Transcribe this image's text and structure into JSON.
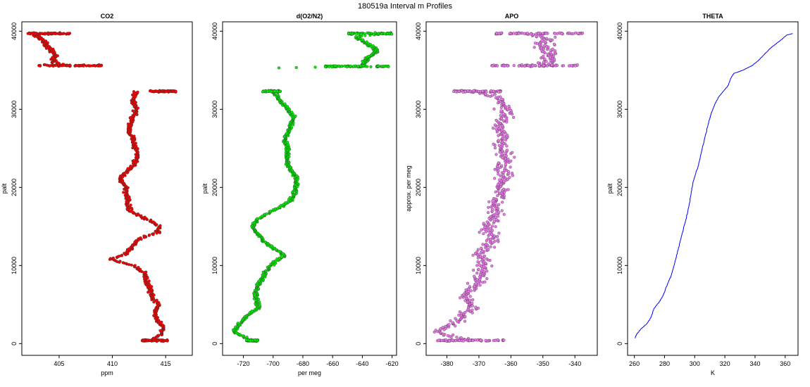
{
  "title": "180519a   Interval m Profiles",
  "chart_data": [
    {
      "type": "scatter",
      "title": "CO2",
      "xlabel": "ppm",
      "ylabel": "palt",
      "xlim": [
        401.5,
        417.5
      ],
      "ylim": [
        -1500,
        41200
      ],
      "xticks": [
        405,
        410,
        415
      ],
      "yticks": [
        0,
        10000,
        20000,
        30000,
        40000
      ],
      "color": "#ff0000",
      "series": [
        {
          "name": "",
          "points": [
            [
              413.5,
              400
            ],
            [
              414.6,
              1200
            ],
            [
              414.8,
              2000
            ],
            [
              414.2,
              3000
            ],
            [
              414.0,
              4000
            ],
            [
              414.3,
              5000
            ],
            [
              413.7,
              6000
            ],
            [
              413.5,
              7000
            ],
            [
              413.3,
              8000
            ],
            [
              413.0,
              9000
            ],
            [
              412.0,
              10000
            ],
            [
              409.8,
              10800
            ],
            [
              411.3,
              11500
            ],
            [
              411.8,
              12500
            ],
            [
              412.6,
              13500
            ],
            [
              414.2,
              14200
            ],
            [
              414.5,
              15000
            ],
            [
              413.2,
              16000
            ],
            [
              411.6,
              17000
            ],
            [
              411.5,
              18000
            ],
            [
              411.3,
              19000
            ],
            [
              411.3,
              20000
            ],
            [
              410.7,
              21000
            ],
            [
              411.3,
              22000
            ],
            [
              412.1,
              23000
            ],
            [
              412.4,
              24000
            ],
            [
              412.2,
              25000
            ],
            [
              412.0,
              26000
            ],
            [
              411.6,
              27000
            ],
            [
              411.6,
              28000
            ],
            [
              411.9,
              29000
            ],
            [
              412.3,
              30000
            ],
            [
              412.0,
              31000
            ],
            [
              412.2,
              32300
            ],
            [
              406.0,
              35500
            ],
            [
              404.5,
              36000
            ],
            [
              404.6,
              37000
            ],
            [
              404.0,
              38000
            ],
            [
              403.3,
              39000
            ],
            [
              402.5,
              39700
            ]
          ]
        }
      ]
    },
    {
      "type": "scatter",
      "title": "d(O2/N2)",
      "xlabel": "per meg",
      "ylabel": "palt",
      "xlim": [
        -734,
        -617
      ],
      "ylim": [
        -1500,
        41200
      ],
      "xticks": [
        -720,
        -700,
        -680,
        -660,
        -640,
        -620
      ],
      "yticks": [
        0,
        10000,
        20000,
        30000,
        40000
      ],
      "color": "#00ee00",
      "series": [
        {
          "name": "",
          "points": [
            [
              -715,
              400
            ],
            [
              -726,
              1500
            ],
            [
              -723,
              2500
            ],
            [
              -718,
              3500
            ],
            [
              -710,
              4500
            ],
            [
              -711,
              5500
            ],
            [
              -712,
              6500
            ],
            [
              -710,
              7500
            ],
            [
              -707,
              8500
            ],
            [
              -704,
              9500
            ],
            [
              -699,
              10500
            ],
            [
              -692,
              11300
            ],
            [
              -698,
              12000
            ],
            [
              -706,
              13000
            ],
            [
              -710,
              14000
            ],
            [
              -714,
              15000
            ],
            [
              -710,
              16000
            ],
            [
              -700,
              17000
            ],
            [
              -690,
              18000
            ],
            [
              -686,
              19000
            ],
            [
              -685,
              20000
            ],
            [
              -684,
              21000
            ],
            [
              -687,
              22000
            ],
            [
              -690,
              23000
            ],
            [
              -691,
              24000
            ],
            [
              -690,
              25000
            ],
            [
              -692,
              26000
            ],
            [
              -690,
              27000
            ],
            [
              -688,
              28000
            ],
            [
              -686,
              29000
            ],
            [
              -690,
              30000
            ],
            [
              -695,
              31000
            ],
            [
              -700,
              32300
            ],
            [
              -698,
              35300
            ],
            [
              -640,
              35500
            ],
            [
              -637,
              36500
            ],
            [
              -630,
              37500
            ],
            [
              -637,
              38500
            ],
            [
              -645,
              39300
            ],
            [
              -625,
              39700
            ]
          ]
        }
      ]
    },
    {
      "type": "scatter",
      "title": "APO",
      "xlabel": "",
      "ylabel": "approx. per meg",
      "xlim": [
        -386.5,
        -333
      ],
      "ylim": [
        -1500,
        41200
      ],
      "xticks": [
        -380,
        -370,
        -360,
        -350,
        -340
      ],
      "yticks": [
        0,
        10000,
        20000,
        30000,
        40000
      ],
      "color": "#ee77ee",
      "series": [
        {
          "name": "",
          "points": [
            [
              -374,
              400
            ],
            [
              -383,
              1500
            ],
            [
              -378,
              2500
            ],
            [
              -376,
              3500
            ],
            [
              -372,
              4500
            ],
            [
              -373,
              5500
            ],
            [
              -374,
              6500
            ],
            [
              -371,
              7500
            ],
            [
              -370,
              8500
            ],
            [
              -369,
              9500
            ],
            [
              -368,
              10500
            ],
            [
              -369,
              11500
            ],
            [
              -367,
              12500
            ],
            [
              -365,
              13500
            ],
            [
              -368,
              14500
            ],
            [
              -366,
              15500
            ],
            [
              -364,
              16500
            ],
            [
              -365,
              17500
            ],
            [
              -364,
              18500
            ],
            [
              -363,
              19500
            ],
            [
              -363,
              20500
            ],
            [
              -362,
              21500
            ],
            [
              -363,
              22500
            ],
            [
              -361,
              23500
            ],
            [
              -362,
              24500
            ],
            [
              -364,
              25500
            ],
            [
              -362,
              26500
            ],
            [
              -364,
              27500
            ],
            [
              -363,
              28500
            ],
            [
              -362,
              29500
            ],
            [
              -362,
              30500
            ],
            [
              -364,
              31500
            ],
            [
              -372,
              32300
            ],
            [
              -350,
              35500
            ],
            [
              -348,
              36500
            ],
            [
              -349,
              37500
            ],
            [
              -350,
              38500
            ],
            [
              -347,
              39000
            ],
            [
              -355,
              39700
            ]
          ]
        }
      ]
    },
    {
      "type": "line",
      "title": "THETA",
      "xlabel": "K",
      "ylabel": "palt",
      "xlim": [
        255.5,
        368.5
      ],
      "ylim": [
        -1500,
        41200
      ],
      "xticks": [
        260,
        280,
        300,
        320,
        340,
        360
      ],
      "yticks": [
        0,
        10000,
        20000,
        30000,
        40000
      ],
      "color": "#0000ff",
      "series": [
        {
          "name": "",
          "points": [
            [
              260.5,
              700
            ],
            [
              261.5,
              1200
            ],
            [
              264,
              1800
            ],
            [
              268,
              2500
            ],
            [
              271,
              3300
            ],
            [
              273,
              4500
            ],
            [
              276,
              5200
            ],
            [
              279,
              6100
            ],
            [
              281.5,
              7400
            ],
            [
              284,
              8500
            ],
            [
              286,
              9800
            ],
            [
              288,
              11300
            ],
            [
              290,
              12800
            ],
            [
              292,
              14300
            ],
            [
              294,
              15800
            ],
            [
              296,
              17400
            ],
            [
              297,
              18500
            ],
            [
              298.5,
              20300
            ],
            [
              300.5,
              21700
            ],
            [
              302.5,
              22800
            ],
            [
              305,
              25000
            ],
            [
              307.5,
              27000
            ],
            [
              309.5,
              28500
            ],
            [
              311,
              29500
            ],
            [
              313.5,
              30700
            ],
            [
              316,
              31600
            ],
            [
              319,
              32300
            ],
            [
              322,
              33000
            ],
            [
              324,
              34000
            ],
            [
              326,
              34600
            ],
            [
              332,
              35000
            ],
            [
              338,
              35600
            ],
            [
              342,
              36200
            ],
            [
              346,
              37000
            ],
            [
              350,
              37800
            ],
            [
              354,
              38400
            ],
            [
              358,
              39000
            ],
            [
              361,
              39500
            ],
            [
              365,
              39700
            ]
          ]
        }
      ]
    }
  ]
}
